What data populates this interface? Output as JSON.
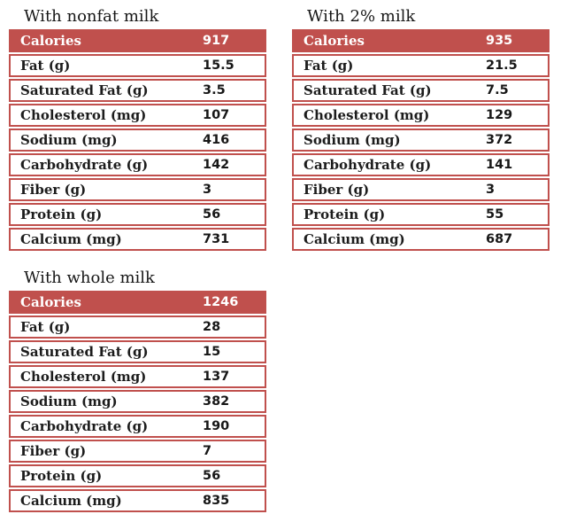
{
  "colors": {
    "accent": "#c0504d",
    "header_text": "#ffffff",
    "row_background": "#ffffff",
    "body_text": "#1c1c1c",
    "title_text": "#161616"
  },
  "tables": [
    {
      "title": "With nonfat milk",
      "header": {
        "label": "Calories",
        "value": "917"
      },
      "rows": [
        {
          "label": "Fat (g)",
          "value": "15.5"
        },
        {
          "label": "Saturated Fat (g)",
          "value": "3.5"
        },
        {
          "label": "Cholesterol (mg)",
          "value": "107"
        },
        {
          "label": "Sodium (mg)",
          "value": "416"
        },
        {
          "label": "Carbohydrate (g)",
          "value": "142"
        },
        {
          "label": "Fiber (g)",
          "value": "3"
        },
        {
          "label": "Protein (g)",
          "value": "56"
        },
        {
          "label": "Calcium (mg)",
          "value": "731"
        }
      ]
    },
    {
      "title": "With 2% milk",
      "header": {
        "label": "Calories",
        "value": "935"
      },
      "rows": [
        {
          "label": "Fat (g)",
          "value": "21.5"
        },
        {
          "label": "Saturated Fat (g)",
          "value": "7.5"
        },
        {
          "label": "Cholesterol (mg)",
          "value": "129"
        },
        {
          "label": "Sodium (mg)",
          "value": "372"
        },
        {
          "label": "Carbohydrate (g)",
          "value": "141"
        },
        {
          "label": "Fiber (g)",
          "value": "3"
        },
        {
          "label": "Protein (g)",
          "value": "55"
        },
        {
          "label": "Calcium (mg)",
          "value": "687"
        }
      ]
    },
    {
      "title": "With whole milk",
      "header": {
        "label": "Calories",
        "value": "1246"
      },
      "rows": [
        {
          "label": "Fat (g)",
          "value": "28"
        },
        {
          "label": "Saturated Fat (g)",
          "value": "15"
        },
        {
          "label": "Cholesterol (mg)",
          "value": "137"
        },
        {
          "label": "Sodium (mg)",
          "value": "382"
        },
        {
          "label": "Carbohydrate (g)",
          "value": "190"
        },
        {
          "label": "Fiber (g)",
          "value": "7"
        },
        {
          "label": "Protein (g)",
          "value": "56"
        },
        {
          "label": "Calcium (mg)",
          "value": "835"
        }
      ]
    }
  ]
}
